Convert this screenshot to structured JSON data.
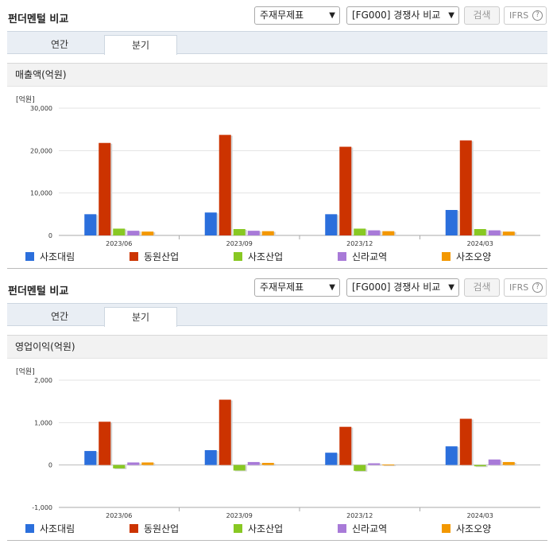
{
  "panels": [
    {
      "title": "펀더멘털 비교",
      "select1": "주재무제표",
      "select2": "[FG000] 경쟁사 비교",
      "search_label": "검색",
      "ifrs_label": "IFRS",
      "tabs": [
        "연간",
        "분기"
      ],
      "active_tab": "분기",
      "metric": "매출액(억원)",
      "unit": "[억원]"
    },
    {
      "title": "펀더멘털 비교",
      "select1": "주재무제표",
      "select2": "[FG000] 경쟁사 비교",
      "search_label": "검색",
      "ifrs_label": "IFRS",
      "tabs": [
        "연간",
        "분기"
      ],
      "active_tab": "분기",
      "metric": "영업이익(억원)",
      "unit": "[억원]"
    }
  ],
  "chart_data": [
    {
      "type": "bar",
      "categories": [
        "2023/06",
        "2023/09",
        "2023/12",
        "2024/03"
      ],
      "ylim": [
        0,
        30000
      ],
      "yticks": [
        0,
        10000,
        20000,
        30000
      ],
      "ytick_labels": [
        "0",
        "10,000",
        "20,000",
        "30,000"
      ],
      "series": [
        {
          "name": "사조대림",
          "color": "#2b6fdc",
          "values": [
            5000,
            5400,
            5000,
            6000
          ]
        },
        {
          "name": "동원산업",
          "color": "#cc3300",
          "values": [
            21800,
            23700,
            20900,
            22400
          ]
        },
        {
          "name": "사조산업",
          "color": "#88c823",
          "values": [
            1600,
            1500,
            1600,
            1500
          ]
        },
        {
          "name": "신라교역",
          "color": "#a87ad8",
          "values": [
            1100,
            1100,
            1200,
            1200
          ]
        },
        {
          "name": "사조오양",
          "color": "#f39800",
          "values": [
            900,
            1000,
            1000,
            900
          ]
        }
      ]
    },
    {
      "type": "bar",
      "categories": [
        "2023/06",
        "2023/09",
        "2023/12",
        "2024/03"
      ],
      "ylim": [
        -1000,
        2000
      ],
      "yticks": [
        -1000,
        0,
        1000,
        2000
      ],
      "ytick_labels": [
        "-1,000",
        "0",
        "1,000",
        "2,000"
      ],
      "series": [
        {
          "name": "사조대림",
          "color": "#2b6fdc",
          "values": [
            330,
            350,
            290,
            440
          ]
        },
        {
          "name": "동원산업",
          "color": "#cc3300",
          "values": [
            1020,
            1540,
            900,
            1090
          ]
        },
        {
          "name": "사조산업",
          "color": "#88c823",
          "values": [
            -80,
            -130,
            -140,
            -30
          ]
        },
        {
          "name": "신라교역",
          "color": "#a87ad8",
          "values": [
            60,
            70,
            40,
            130
          ]
        },
        {
          "name": "사조오양",
          "color": "#f39800",
          "values": [
            60,
            50,
            10,
            70
          ]
        }
      ]
    }
  ]
}
